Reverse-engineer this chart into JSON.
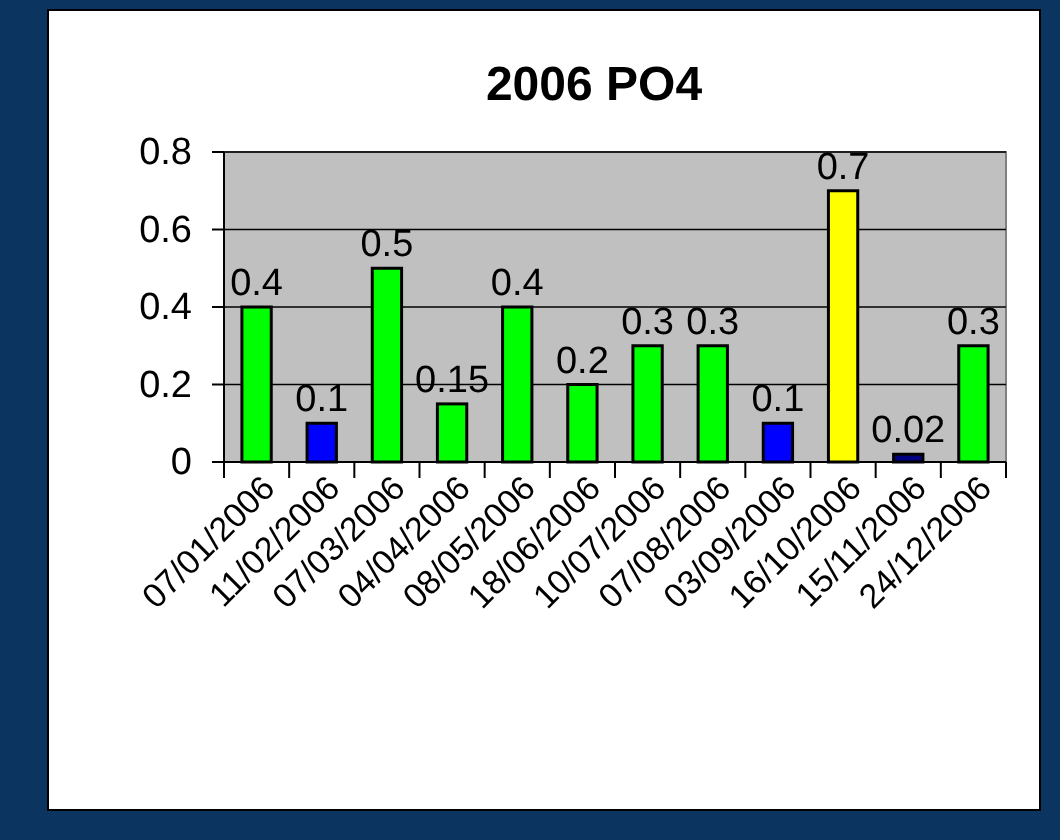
{
  "chart_data": {
    "type": "bar",
    "title": "2006 PO4",
    "categories": [
      "07/01/2006",
      "11/02/2006",
      "07/03/2006",
      "04/04/2006",
      "08/05/2006",
      "18/06/2006",
      "10/07/2006",
      "07/08/2006",
      "03/09/2006",
      "16/10/2006",
      "15/11/2006",
      "24/12/2006"
    ],
    "values": [
      0.4,
      0.1,
      0.5,
      0.15,
      0.4,
      0.2,
      0.3,
      0.3,
      0.1,
      0.7,
      0.02,
      0.3
    ],
    "colors": [
      "#00ff00",
      "#0000ff",
      "#00ff00",
      "#00ff00",
      "#00ff00",
      "#00ff00",
      "#00ff00",
      "#00ff00",
      "#0000ff",
      "#ffff00",
      "#000080",
      "#00ff00"
    ],
    "ylim": [
      0,
      0.8
    ],
    "yticks": [
      0,
      0.2,
      0.4,
      0.6,
      0.8
    ],
    "grid": "y",
    "data_labels": true
  }
}
